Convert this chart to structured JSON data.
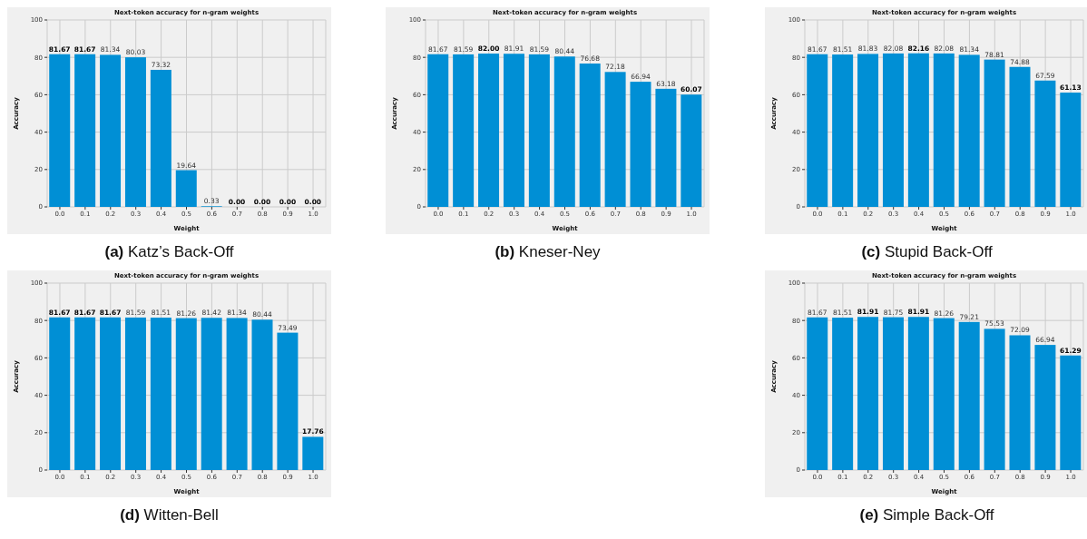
{
  "chart_data": [
    {
      "type": "bar",
      "title": "Next-token accuracy for n-gram weights",
      "xlabel": "Weight",
      "ylabel": "Accuracy",
      "categories": [
        "0.0",
        "0.1",
        "0.2",
        "0.3",
        "0.4",
        "0.5",
        "0.6",
        "0.7",
        "0.8",
        "0.9",
        "1.0"
      ],
      "values": [
        81.67,
        81.67,
        81.34,
        80.03,
        73.32,
        19.64,
        0.33,
        0,
        0,
        0,
        0
      ],
      "value_labels": [
        "81.67",
        "81.67",
        "81.34",
        "80.03",
        "73.32",
        "19.64",
        "0.33",
        "0.00",
        "0.00",
        "0.00",
        "0.00"
      ],
      "color": "#008fd5",
      "ylim": [
        0,
        100
      ],
      "yticks": [
        0,
        20,
        40,
        60,
        80,
        100
      ],
      "grid": true,
      "annotations": [
        "(a) Katz’s Back-Off"
      ]
    },
    {
      "type": "bar",
      "title": "Next-token accuracy for n-gram weights",
      "xlabel": "Weight",
      "ylabel": "Accuracy",
      "categories": [
        "0.0",
        "0.1",
        "0.2",
        "0.3",
        "0.4",
        "0.5",
        "0.6",
        "0.7",
        "0.8",
        "0.9",
        "1.0"
      ],
      "values": [
        81.67,
        81.59,
        82.0,
        81.91,
        81.59,
        80.44,
        76.68,
        72.18,
        66.94,
        63.18,
        60.07
      ],
      "value_labels": [
        "81.67",
        "81.59",
        "82.00",
        "81.91",
        "81.59",
        "80.44",
        "76.68",
        "72.18",
        "66.94",
        "63.18",
        "60.07"
      ],
      "color": "#008fd5",
      "ylim": [
        0,
        100
      ],
      "yticks": [
        0,
        20,
        40,
        60,
        80,
        100
      ],
      "grid": true,
      "annotations": [
        "(b) Kneser-Ney"
      ]
    },
    {
      "type": "bar",
      "title": "Next-token accuracy for n-gram weights",
      "xlabel": "Weight",
      "ylabel": "Accuracy",
      "categories": [
        "0.0",
        "0.1",
        "0.2",
        "0.3",
        "0.4",
        "0.5",
        "0.6",
        "0.7",
        "0.8",
        "0.9",
        "1.0"
      ],
      "values": [
        81.67,
        81.51,
        81.83,
        82.08,
        82.16,
        82.08,
        81.34,
        78.81,
        74.88,
        67.59,
        61.13
      ],
      "value_labels": [
        "81.67",
        "81.51",
        "81.83",
        "82.08",
        "82.16",
        "82.08",
        "81.34",
        "78.81",
        "74.88",
        "67.59",
        "61.13"
      ],
      "color": "#008fd5",
      "ylim": [
        0,
        100
      ],
      "yticks": [
        0,
        20,
        40,
        60,
        80,
        100
      ],
      "grid": true,
      "annotations": [
        "(c) Stupid Back-Off"
      ]
    },
    {
      "type": "bar",
      "title": "Next-token accuracy for n-gram weights",
      "xlabel": "Weight",
      "ylabel": "Accuracy",
      "categories": [
        "0.0",
        "0.1",
        "0.2",
        "0.3",
        "0.4",
        "0.5",
        "0.6",
        "0.7",
        "0.8",
        "0.9",
        "1.0"
      ],
      "values": [
        81.67,
        81.67,
        81.67,
        81.59,
        81.51,
        81.26,
        81.42,
        81.34,
        80.44,
        73.49,
        17.76
      ],
      "value_labels": [
        "81.67",
        "81.67",
        "81.67",
        "81.59",
        "81.51",
        "81.26",
        "81.42",
        "81.34",
        "80.44",
        "73.49",
        "17.76"
      ],
      "color": "#008fd5",
      "ylim": [
        0,
        100
      ],
      "yticks": [
        0,
        20,
        40,
        60,
        80,
        100
      ],
      "grid": true,
      "annotations": [
        "(d) Witten-Bell"
      ]
    },
    {
      "type": "bar",
      "title": "Next-token accuracy for n-gram weights",
      "xlabel": "Weight",
      "ylabel": "Accuracy",
      "categories": [
        "0.0",
        "0.1",
        "0.2",
        "0.3",
        "0.4",
        "0.5",
        "0.6",
        "0.7",
        "0.8",
        "0.9",
        "1.0"
      ],
      "values": [
        81.67,
        81.51,
        81.91,
        81.75,
        81.91,
        81.26,
        79.21,
        75.53,
        72.09,
        66.94,
        61.29
      ],
      "value_labels": [
        "81.67",
        "81.51",
        "81.91",
        "81.75",
        "81.91",
        "81.26",
        "79.21",
        "75.53",
        "72.09",
        "66.94",
        "61.29"
      ],
      "color": "#008fd5",
      "ylim": [
        0,
        100
      ],
      "yticks": [
        0,
        20,
        40,
        60,
        80,
        100
      ],
      "grid": true,
      "annotations": [
        "(e) Simple Back-Off"
      ]
    }
  ]
}
